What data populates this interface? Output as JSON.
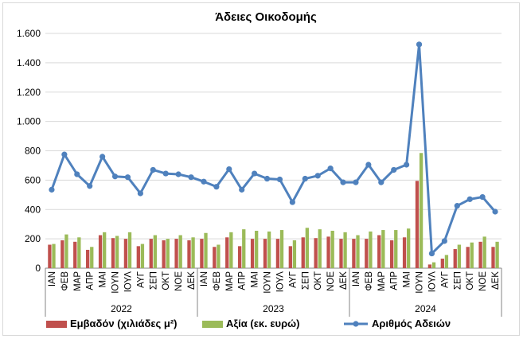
{
  "chart_data": {
    "type": "bar+line",
    "title": "Άδειες Οικοδομής",
    "y_axis": {
      "ylim": [
        0,
        1600
      ],
      "ticks": [
        0,
        200,
        400,
        600,
        800,
        1000,
        1200,
        1400,
        1600
      ],
      "tick_labels": [
        "0",
        "200",
        "400",
        "600",
        "800",
        "1.000",
        "1.200",
        "1.400",
        "1.600"
      ],
      "gridlines": true
    },
    "months": [
      "ΙΑΝ",
      "ΦΕΒ",
      "ΜΑΡ",
      "ΑΠΡ",
      "ΜΑΙ",
      "ΙΟΥΝ",
      "ΙΟΥΛ",
      "ΑΥΓ",
      "ΣΕΠ",
      "ΟΚΤ",
      "ΝΟΕ",
      "ΔΕΚ"
    ],
    "years": [
      "2022",
      "2023",
      "2024"
    ],
    "legend_position": "bottom",
    "series": [
      {
        "name": "Εμβαδόν (χιλιάδες μ²)",
        "type": "bar",
        "color": "#c0504d",
        "values": [
          160,
          190,
          180,
          125,
          225,
          205,
          200,
          150,
          200,
          190,
          200,
          190,
          200,
          145,
          210,
          150,
          200,
          200,
          200,
          150,
          210,
          205,
          215,
          200,
          200,
          200,
          225,
          190,
          210,
          595,
          25,
          65,
          130,
          145,
          180,
          145
        ]
      },
      {
        "name": "Αξία (εκ. ευρώ)",
        "type": "bar",
        "color": "#9bbb59",
        "values": [
          165,
          230,
          210,
          145,
          245,
          220,
          245,
          165,
          225,
          200,
          225,
          210,
          240,
          160,
          245,
          265,
          255,
          250,
          260,
          190,
          275,
          265,
          255,
          245,
          225,
          250,
          260,
          260,
          270,
          785,
          40,
          90,
          160,
          175,
          215,
          180
        ]
      },
      {
        "name": "Αριθμός Αδειών",
        "type": "line",
        "color": "#4f81bd",
        "values": [
          535,
          775,
          640,
          560,
          760,
          625,
          620,
          510,
          670,
          645,
          640,
          620,
          590,
          555,
          675,
          535,
          645,
          610,
          605,
          450,
          610,
          630,
          680,
          585,
          585,
          705,
          585,
          670,
          705,
          1525,
          100,
          185,
          425,
          470,
          485,
          385
        ]
      }
    ]
  }
}
